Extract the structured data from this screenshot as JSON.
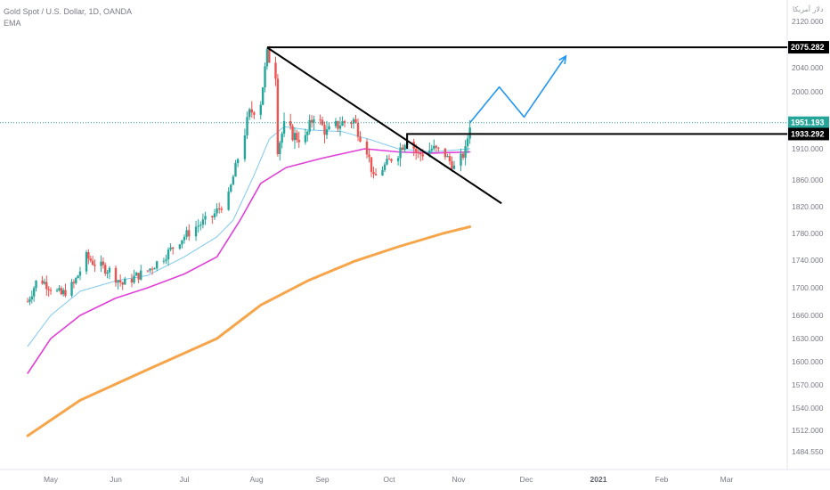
{
  "header": {
    "title": "Gold Spot / U.S. Dollar, 1D, OANDA",
    "indicator": "EMA"
  },
  "axis": {
    "currency_label": "دلار آمریکا"
  },
  "colors": {
    "bull": "#26a69a",
    "bear": "#ef5350",
    "ema_fast": "#7ec8ee",
    "ema_mid": "#e040d8",
    "ema_slow": "#f7a54a",
    "forecast": "#2196f3",
    "price_line": "#26a69a",
    "level_box": "#000000"
  },
  "chart_data": {
    "type": "candlestick",
    "y_ticks": [
      "2120.000",
      "2075.282",
      "2040.000",
      "2000.000",
      "1951.193",
      "1933.292",
      "1910.000",
      "1860.000",
      "1820.000",
      "1780.000",
      "1740.000",
      "1700.000",
      "1660.000",
      "1630.000",
      "1600.000",
      "1570.000",
      "1540.000",
      "1512.000",
      "1484.550"
    ],
    "x_ticks": [
      {
        "label": "May",
        "date": "2020-05-01",
        "bold": false
      },
      {
        "label": "Jun",
        "date": "2020-06-01",
        "bold": false
      },
      {
        "label": "Jul",
        "date": "2020-07-01",
        "bold": false
      },
      {
        "label": "Aug",
        "date": "2020-08-01",
        "bold": false
      },
      {
        "label": "Sep",
        "date": "2020-09-01",
        "bold": false
      },
      {
        "label": "Oct",
        "date": "2020-10-01",
        "bold": false
      },
      {
        "label": "Nov",
        "date": "2020-11-01",
        "bold": false
      },
      {
        "label": "Dec",
        "date": "2020-12-01",
        "bold": false
      },
      {
        "label": "2021",
        "date": "2021-01-01",
        "bold": true
      },
      {
        "label": "Feb",
        "date": "2021-02-01",
        "bold": false
      },
      {
        "label": "Mar",
        "date": "2021-03-01",
        "bold": false
      }
    ],
    "price_labels": [
      {
        "value": 2075.282,
        "text": "2075.282",
        "color": "#000000"
      },
      {
        "value": 1951.193,
        "text": "1951.193",
        "color": "#26a69a"
      },
      {
        "value": 1933.292,
        "text": "1933.292",
        "color": "#000000"
      }
    ],
    "close_path": [
      [
        "2020-04-20",
        1680
      ],
      [
        "2020-04-25",
        1715
      ],
      [
        "2020-05-01",
        1700
      ],
      [
        "2020-05-06",
        1690
      ],
      [
        "2020-05-12",
        1705
      ],
      [
        "2020-05-18",
        1745
      ],
      [
        "2020-05-22",
        1735
      ],
      [
        "2020-05-29",
        1725
      ],
      [
        "2020-06-04",
        1705
      ],
      [
        "2020-06-09",
        1715
      ],
      [
        "2020-06-15",
        1725
      ],
      [
        "2020-06-22",
        1745
      ],
      [
        "2020-06-29",
        1770
      ],
      [
        "2020-07-06",
        1790
      ],
      [
        "2020-07-13",
        1805
      ],
      [
        "2020-07-20",
        1835
      ],
      [
        "2020-07-24",
        1895
      ],
      [
        "2020-07-29",
        1965
      ],
      [
        "2020-08-03",
        1985
      ],
      [
        "2020-08-06",
        2063
      ],
      [
        "2020-08-10",
        2030
      ],
      [
        "2020-08-11",
        1912
      ],
      [
        "2020-08-14",
        1945
      ],
      [
        "2020-08-19",
        1930
      ],
      [
        "2020-08-24",
        1925
      ],
      [
        "2020-08-28",
        1965
      ],
      [
        "2020-09-03",
        1935
      ],
      [
        "2020-09-09",
        1950
      ],
      [
        "2020-09-15",
        1955
      ],
      [
        "2020-09-21",
        1910
      ],
      [
        "2020-09-24",
        1862
      ],
      [
        "2020-09-30",
        1887
      ],
      [
        "2020-10-05",
        1905
      ],
      [
        "2020-10-09",
        1930
      ],
      [
        "2020-10-14",
        1900
      ],
      [
        "2020-10-20",
        1910
      ],
      [
        "2020-10-26",
        1900
      ],
      [
        "2020-10-30",
        1880
      ],
      [
        "2020-11-02",
        1895
      ],
      [
        "2020-11-04",
        1905
      ],
      [
        "2020-11-06",
        1951
      ]
    ],
    "ema_fast": [
      [
        "2020-04-20",
        1620
      ],
      [
        "2020-05-01",
        1660
      ],
      [
        "2020-05-15",
        1695
      ],
      [
        "2020-06-01",
        1710
      ],
      [
        "2020-06-15",
        1718
      ],
      [
        "2020-07-01",
        1745
      ],
      [
        "2020-07-15",
        1775
      ],
      [
        "2020-07-22",
        1800
      ],
      [
        "2020-07-31",
        1868
      ],
      [
        "2020-08-07",
        1925
      ],
      [
        "2020-08-14",
        1945
      ],
      [
        "2020-08-25",
        1940
      ],
      [
        "2020-09-10",
        1937
      ],
      [
        "2020-09-22",
        1925
      ],
      [
        "2020-10-05",
        1910
      ],
      [
        "2020-10-20",
        1905
      ],
      [
        "2020-11-06",
        1910
      ]
    ],
    "ema_mid": [
      [
        "2020-04-20",
        1585
      ],
      [
        "2020-05-01",
        1630
      ],
      [
        "2020-05-15",
        1660
      ],
      [
        "2020-06-01",
        1685
      ],
      [
        "2020-06-15",
        1700
      ],
      [
        "2020-07-01",
        1720
      ],
      [
        "2020-07-15",
        1745
      ],
      [
        "2020-07-25",
        1800
      ],
      [
        "2020-08-03",
        1855
      ],
      [
        "2020-08-15",
        1880
      ],
      [
        "2020-09-01",
        1895
      ],
      [
        "2020-09-20",
        1910
      ],
      [
        "2020-10-05",
        1905
      ],
      [
        "2020-10-20",
        1903
      ],
      [
        "2020-11-06",
        1905
      ]
    ],
    "ema_slow": [
      [
        "2020-04-20",
        1505
      ],
      [
        "2020-05-15",
        1550
      ],
      [
        "2020-06-15",
        1590
      ],
      [
        "2020-07-15",
        1630
      ],
      [
        "2020-08-03",
        1675
      ],
      [
        "2020-08-25",
        1710
      ],
      [
        "2020-09-15",
        1738
      ],
      [
        "2020-10-05",
        1760
      ],
      [
        "2020-10-25",
        1780
      ],
      [
        "2020-11-06",
        1790
      ]
    ],
    "annotations": {
      "resistance": {
        "value": 2075.282,
        "from": "2020-08-06"
      },
      "breakout_box": {
        "value": 1933.292,
        "from": "2020-10-09",
        "bottom": 1910
      },
      "trendline": {
        "from": [
          "2020-08-06",
          2075
        ],
        "to": [
          "2020-11-20",
          1825
        ]
      },
      "forecast_path": [
        [
          "2020-11-06",
          1951
        ],
        [
          "2020-11-19",
          2008
        ],
        [
          "2020-11-30",
          1960
        ],
        [
          "2020-12-18",
          2060
        ]
      ]
    }
  }
}
